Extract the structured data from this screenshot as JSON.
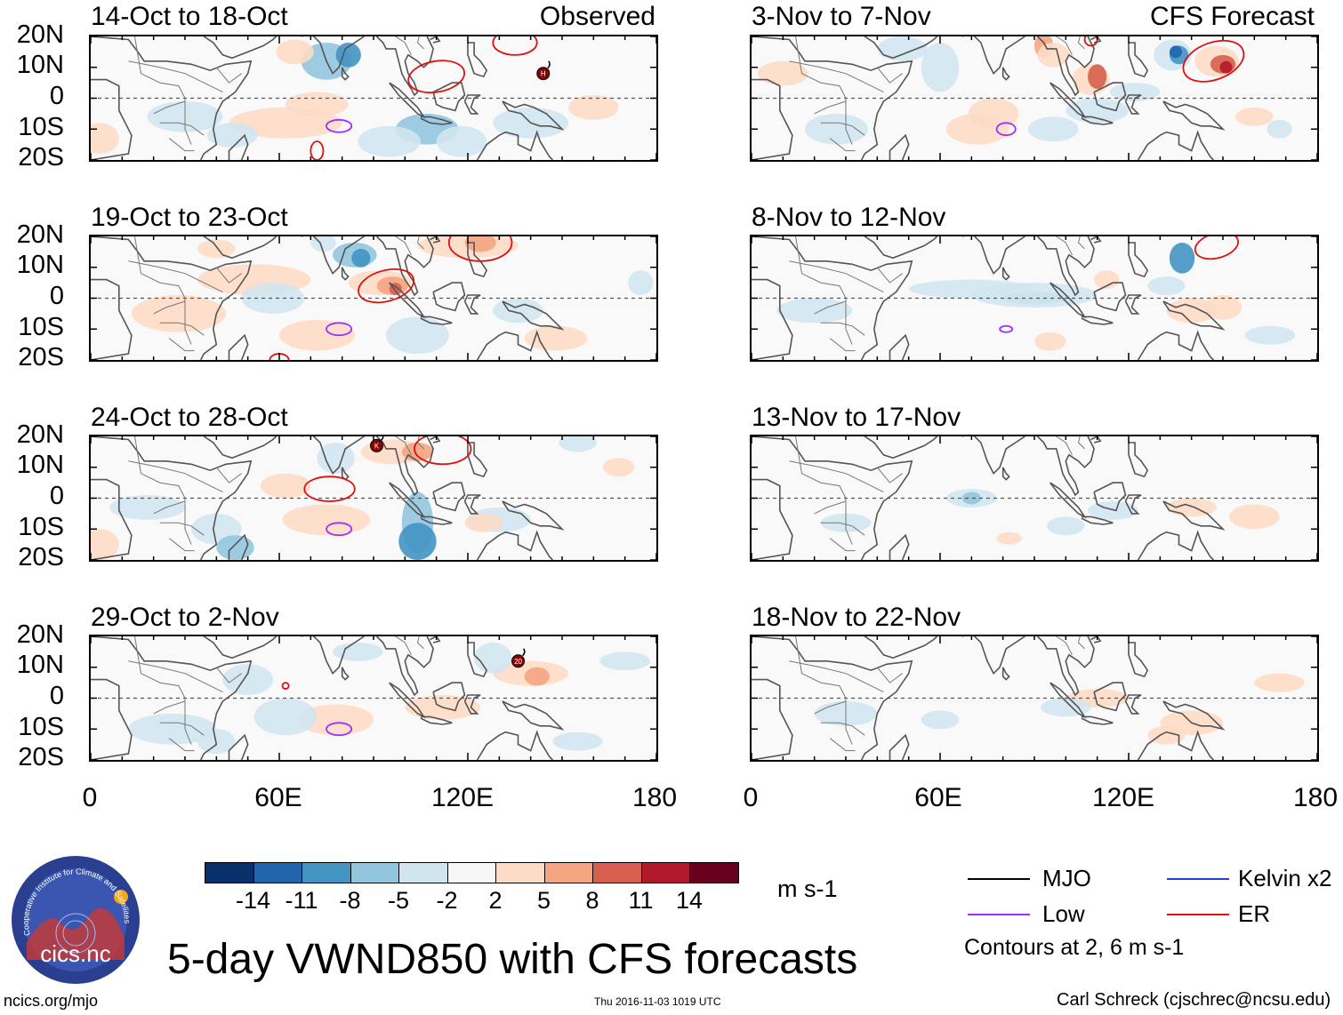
{
  "observed_label": "Observed",
  "forecast_label": "CFS Forecast",
  "lat_labels": [
    "20N",
    "10N",
    "0",
    "10S",
    "20S"
  ],
  "lon_labels": [
    "0",
    "60E",
    "120E",
    "180"
  ],
  "panels": [
    {
      "title": "14-Oct to 18-Oct"
    },
    {
      "title": "19-Oct to 23-Oct"
    },
    {
      "title": "24-Oct to 28-Oct"
    },
    {
      "title": "29-Oct to 2-Nov"
    },
    {
      "title": "3-Nov to 7-Nov"
    },
    {
      "title": "8-Nov to 12-Nov"
    },
    {
      "title": "13-Nov to 17-Nov"
    },
    {
      "title": "18-Nov to 22-Nov"
    }
  ],
  "storm_markers": {
    "h": "H",
    "k": "K",
    "n20": "20"
  },
  "colorbar": {
    "ticks": [
      "-14",
      "-11",
      "-8",
      "-5",
      "-2",
      "2",
      "5",
      "8",
      "11",
      "14"
    ],
    "colors": [
      "#08306b",
      "#2166ac",
      "#4393c3",
      "#92c5de",
      "#d1e5f0",
      "#f7f7f7",
      "#fddbc7",
      "#f4a582",
      "#d6604d",
      "#b2182b",
      "#67001f"
    ],
    "units": "m s-1"
  },
  "legend": {
    "mjo": "MJO",
    "low": "Low",
    "kelvin": "Kelvin x2",
    "er": "ER",
    "contours_note": "Contours at 2, 6 m s-1",
    "colors": {
      "mjo": "#000000",
      "low": "#9b30ff",
      "kelvin": "#1f3fd8",
      "er": "#e01010"
    }
  },
  "logo": {
    "name": "cics.nc",
    "ring_text": "Cooperative Institute for Climate and Satellites"
  },
  "main_title": "5-day VWND850 with CFS forecasts",
  "footer": {
    "url": "ncics.org/mjo",
    "timestamp": "Thu 2016-11-03 1019 UTC",
    "author": "Carl Schreck (cjschrec@ncsu.edu)"
  }
}
